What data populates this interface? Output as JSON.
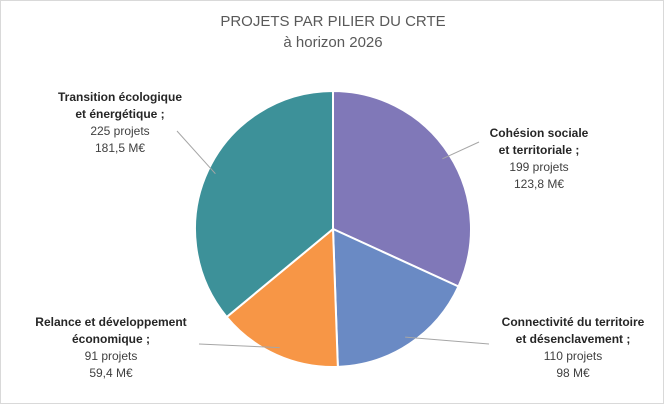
{
  "chart_data": {
    "type": "pie",
    "title": "PROJETS PAR PILIER DU CRTE",
    "subtitle": "à horizon 2026",
    "unit": "projets",
    "slices": [
      {
        "category_line1": "Cohésion sociale",
        "category_line2": "et territoriale ;",
        "projects": 199,
        "projects_label": "199 projets",
        "amount": 123.8,
        "amount_label": "123,8 M€",
        "color": "#8078b8"
      },
      {
        "category_line1": "Connectivité du territoire",
        "category_line2": "et désenclavement ;",
        "projects": 110,
        "projects_label": "110 projets",
        "amount": 98,
        "amount_label": "98 M€",
        "color": "#6a8ac4"
      },
      {
        "category_line1": "Relance et développement",
        "category_line2": "économique ;",
        "projects": 91,
        "projects_label": "91 projets",
        "amount": 59.4,
        "amount_label": "59,4 M€",
        "color": "#f79646"
      },
      {
        "category_line1": "Transition écologique",
        "category_line2": "et énergétique ;",
        "projects": 225,
        "projects_label": "225 projets",
        "amount": 181.5,
        "amount_label": "181,5 M€",
        "color": "#3d9199"
      }
    ]
  }
}
